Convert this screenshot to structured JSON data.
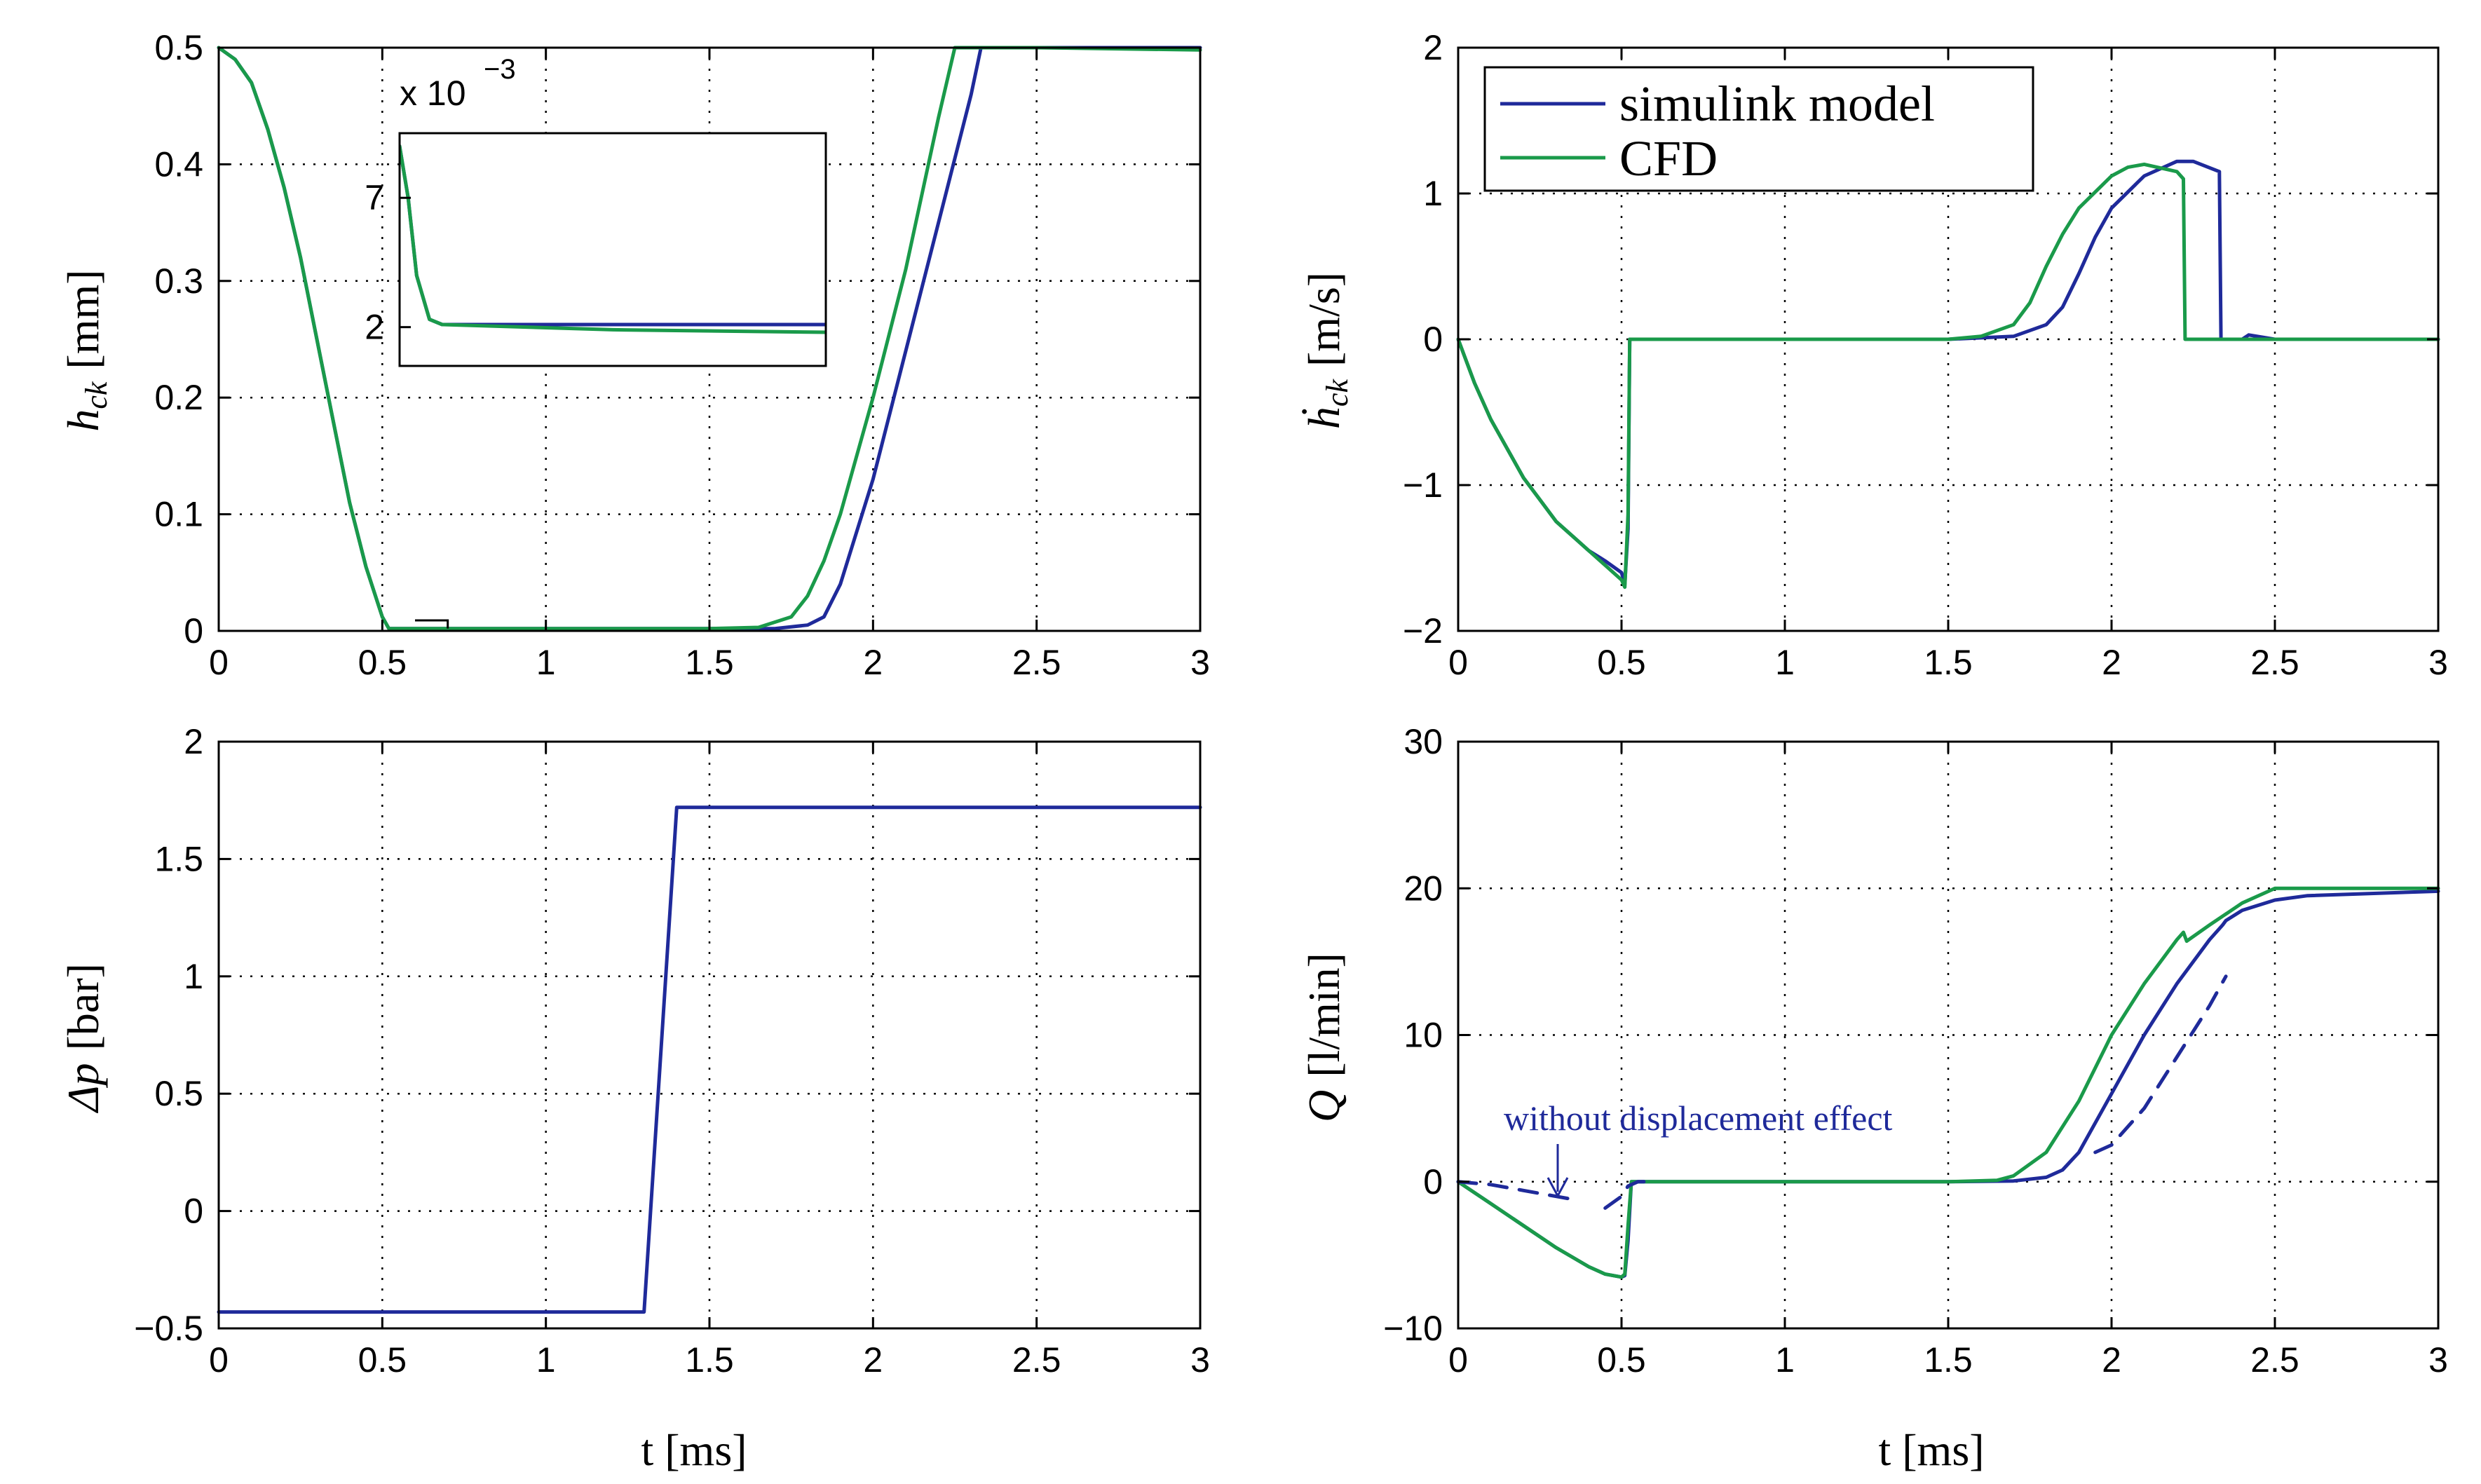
{
  "colors": {
    "simulink": "#1f2a9a",
    "cfd": "#1a9a4a",
    "axis": "#000000"
  },
  "chart_data": [
    {
      "id": "hck",
      "type": "line",
      "xlabel": "",
      "ylabel_main": "h",
      "ylabel_sub": "ck",
      "ylabel_unit": "[mm]",
      "xlim": [
        0,
        3
      ],
      "ylim": [
        0,
        0.5
      ],
      "xticks": [
        0,
        0.5,
        1,
        1.5,
        2,
        2.5,
        3
      ],
      "xticklabels": [
        "0",
        "0.5",
        "1",
        "1.5",
        "2",
        "2.5",
        "3"
      ],
      "yticks": [
        0,
        0.1,
        0.2,
        0.3,
        0.4,
        0.5
      ],
      "yticklabels": [
        "0",
        "0.1",
        "0.2",
        "0.3",
        "0.4",
        "0.5"
      ],
      "grid": true,
      "series": [
        {
          "name": "simulink model",
          "color": "#1f2a9a",
          "x": [
            0,
            0.05,
            0.1,
            0.15,
            0.2,
            0.25,
            0.3,
            0.35,
            0.4,
            0.45,
            0.5,
            0.52,
            0.6,
            1.0,
            1.5,
            1.7,
            1.8,
            1.85,
            1.9,
            2.0,
            2.1,
            2.2,
            2.3,
            2.33,
            2.5,
            3.0
          ],
          "y": [
            0.5,
            0.49,
            0.47,
            0.43,
            0.38,
            0.32,
            0.25,
            0.18,
            0.11,
            0.055,
            0.012,
            0.002,
            0.002,
            0.002,
            0.002,
            0.002,
            0.005,
            0.012,
            0.04,
            0.13,
            0.24,
            0.35,
            0.46,
            0.5,
            0.5,
            0.5
          ]
        },
        {
          "name": "CFD",
          "color": "#1a9a4a",
          "x": [
            0,
            0.05,
            0.1,
            0.15,
            0.2,
            0.25,
            0.3,
            0.35,
            0.4,
            0.45,
            0.5,
            0.52,
            0.6,
            1.0,
            1.5,
            1.65,
            1.75,
            1.8,
            1.85,
            1.9,
            2.0,
            2.1,
            2.2,
            2.25,
            2.5,
            3.0
          ],
          "y": [
            0.5,
            0.49,
            0.47,
            0.43,
            0.38,
            0.32,
            0.25,
            0.18,
            0.11,
            0.055,
            0.012,
            0.002,
            0.002,
            0.002,
            0.002,
            0.003,
            0.012,
            0.03,
            0.06,
            0.1,
            0.2,
            0.31,
            0.44,
            0.5,
            0.5,
            0.498
          ]
        }
      ]
    },
    {
      "id": "inset",
      "type": "line",
      "exponent_label": "x 10",
      "exponent_power": "−3",
      "xlim": [
        0.5,
        1.5
      ],
      "ylim": [
        0.0005,
        0.0095
      ],
      "yticks": [
        0.002,
        0.007
      ],
      "yticklabels": [
        "2",
        "7"
      ],
      "series": [
        {
          "name": "simulink model",
          "color": "#1f2a9a",
          "x": [
            0.5,
            0.52,
            0.54,
            0.57,
            0.6,
            1.0,
            1.5
          ],
          "y": [
            0.009,
            0.007,
            0.004,
            0.0023,
            0.0021,
            0.0021,
            0.0021
          ]
        },
        {
          "name": "CFD",
          "color": "#1a9a4a",
          "x": [
            0.5,
            0.52,
            0.54,
            0.57,
            0.6,
            1.0,
            1.5
          ],
          "y": [
            0.009,
            0.007,
            0.004,
            0.0023,
            0.0021,
            0.0019,
            0.0018
          ]
        }
      ]
    },
    {
      "id": "hdot",
      "type": "line",
      "xlabel": "",
      "ylabel_main": "ḣ",
      "ylabel_sub": "ck",
      "ylabel_unit": "[m/s]",
      "xlim": [
        0,
        3
      ],
      "ylim": [
        -2,
        2
      ],
      "xticks": [
        0,
        0.5,
        1,
        1.5,
        2,
        2.5,
        3
      ],
      "xticklabels": [
        "0",
        "0.5",
        "1",
        "1.5",
        "2",
        "2.5",
        "3"
      ],
      "yticks": [
        -2,
        -1,
        0,
        1,
        2
      ],
      "yticklabels": [
        "−2",
        "−1",
        "0",
        "1",
        "2"
      ],
      "grid": true,
      "legend": {
        "position": "top-left",
        "entries": [
          "simulink model",
          "CFD"
        ]
      },
      "series": [
        {
          "name": "simulink model",
          "color": "#1f2a9a",
          "x": [
            0,
            0.05,
            0.1,
            0.15,
            0.2,
            0.25,
            0.3,
            0.35,
            0.4,
            0.45,
            0.5,
            0.51,
            0.52,
            0.525,
            0.55,
            1.0,
            1.5,
            1.7,
            1.8,
            1.85,
            1.9,
            1.95,
            2.0,
            2.1,
            2.2,
            2.25,
            2.33,
            2.335,
            2.4,
            2.42,
            2.5,
            3.0
          ],
          "y": [
            0,
            -0.3,
            -0.55,
            -0.75,
            -0.95,
            -1.1,
            -1.25,
            -1.35,
            -1.45,
            -1.52,
            -1.6,
            -1.68,
            -1.3,
            0,
            0,
            0,
            0,
            0.02,
            0.1,
            0.22,
            0.45,
            0.7,
            0.9,
            1.12,
            1.22,
            1.22,
            1.15,
            0,
            0,
            0.03,
            0,
            0
          ]
        },
        {
          "name": "CFD",
          "color": "#1a9a4a",
          "x": [
            0,
            0.05,
            0.1,
            0.15,
            0.2,
            0.25,
            0.3,
            0.35,
            0.4,
            0.45,
            0.5,
            0.51,
            0.52,
            0.525,
            0.55,
            1.0,
            1.5,
            1.6,
            1.7,
            1.75,
            1.8,
            1.85,
            1.9,
            2.0,
            2.05,
            2.1,
            2.2,
            2.22,
            2.225,
            2.3,
            3.0
          ],
          "y": [
            0,
            -0.3,
            -0.55,
            -0.75,
            -0.95,
            -1.1,
            -1.25,
            -1.35,
            -1.45,
            -1.55,
            -1.65,
            -1.7,
            -1.2,
            0,
            0,
            0,
            0,
            0.02,
            0.1,
            0.25,
            0.5,
            0.72,
            0.9,
            1.12,
            1.18,
            1.2,
            1.15,
            1.1,
            0,
            0,
            0
          ]
        }
      ]
    },
    {
      "id": "dp",
      "type": "line",
      "xlabel": "t [ms]",
      "ylabel_main": "Δp",
      "ylabel_sub": "",
      "ylabel_unit": "[bar]",
      "xlim": [
        0,
        3
      ],
      "ylim": [
        -0.5,
        2
      ],
      "xticks": [
        0,
        0.5,
        1,
        1.5,
        2,
        2.5,
        3
      ],
      "xticklabels": [
        "0",
        "0.5",
        "1",
        "1.5",
        "2",
        "2.5",
        "3"
      ],
      "yticks": [
        -0.5,
        0,
        0.5,
        1,
        1.5,
        2
      ],
      "yticklabels": [
        "−0.5",
        "0",
        "0.5",
        "1",
        "1.5",
        "2"
      ],
      "grid": true,
      "series": [
        {
          "name": "simulink model",
          "color": "#1f2a9a",
          "x": [
            0,
            1.3,
            1.4,
            3.0
          ],
          "y": [
            -0.43,
            -0.43,
            1.72,
            1.72
          ]
        }
      ]
    },
    {
      "id": "q",
      "type": "line",
      "xlabel": "t [ms]",
      "ylabel_main": "Q",
      "ylabel_sub": "",
      "ylabel_unit": "[l/min]",
      "xlim": [
        0,
        3
      ],
      "ylim": [
        -10,
        30
      ],
      "xticks": [
        0,
        0.5,
        1,
        1.5,
        2,
        2.5,
        3
      ],
      "xticklabels": [
        "0",
        "0.5",
        "1",
        "1.5",
        "2",
        "2.5",
        "3"
      ],
      "yticks": [
        -10,
        0,
        10,
        20,
        30
      ],
      "yticklabels": [
        "−10",
        "0",
        "10",
        "20",
        "30"
      ],
      "grid": true,
      "annotation": {
        "text": "without displacement effect",
        "arrow_to": [
          0.3,
          -1.3
        ]
      },
      "series": [
        {
          "name": "simulink model",
          "color": "#1f2a9a",
          "x": [
            0,
            0.1,
            0.2,
            0.3,
            0.4,
            0.45,
            0.5,
            0.51,
            0.52,
            0.53,
            0.6,
            1.0,
            1.5,
            1.7,
            1.8,
            1.85,
            1.9,
            2.0,
            2.1,
            2.2,
            2.3,
            2.34,
            2.35,
            2.4,
            2.5,
            2.6,
            3.0
          ],
          "y": [
            0,
            -1.5,
            -3,
            -4.5,
            -5.8,
            -6.3,
            -6.5,
            -6.4,
            -4,
            0,
            0,
            0,
            0,
            0.05,
            0.3,
            0.8,
            2,
            6,
            10,
            13.5,
            16.5,
            17.5,
            17.8,
            18.5,
            19.2,
            19.5,
            19.8
          ]
        },
        {
          "name": "CFD",
          "color": "#1a9a4a",
          "x": [
            0,
            0.1,
            0.2,
            0.3,
            0.4,
            0.45,
            0.5,
            0.51,
            0.52,
            0.53,
            0.6,
            1.0,
            1.5,
            1.65,
            1.7,
            1.8,
            1.9,
            2.0,
            2.1,
            2.2,
            2.22,
            2.23,
            2.3,
            2.4,
            2.5,
            3.0
          ],
          "y": [
            0,
            -1.5,
            -3,
            -4.5,
            -5.8,
            -6.3,
            -6.5,
            -6.3,
            -3,
            0,
            0,
            0,
            0,
            0.1,
            0.4,
            2,
            5.5,
            10,
            13.5,
            16.5,
            17,
            16.4,
            17.5,
            19,
            20,
            20
          ]
        },
        {
          "name": "without displacement effect",
          "color": "#1f2a9a",
          "dashed": true,
          "x": [
            0,
            0.1,
            0.2,
            0.3,
            0.35
          ],
          "y": [
            0,
            -0.2,
            -0.6,
            -1.0,
            -1.2
          ]
        },
        {
          "name": "without displacement effect (2)",
          "color": "#1f2a9a",
          "dashed": true,
          "x": [
            0.45,
            0.5,
            0.52,
            0.55,
            0.6
          ],
          "y": [
            -1.8,
            -1.0,
            -0.3,
            0,
            0
          ]
        },
        {
          "name": "without displacement effect (3)",
          "color": "#1f2a9a",
          "dashed": true,
          "x": [
            1.95,
            2.0,
            2.1,
            2.2,
            2.3,
            2.35
          ],
          "y": [
            2,
            2.5,
            5,
            8.5,
            12,
            14
          ]
        }
      ]
    }
  ]
}
